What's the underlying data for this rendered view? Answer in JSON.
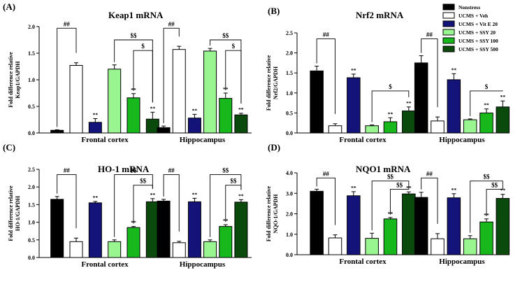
{
  "legend": {
    "entries": [
      {
        "label": "Nonstress",
        "color": "#000000"
      },
      {
        "label": "UCMS + Veh",
        "color": "#ffffff"
      },
      {
        "label": "UCMS + Vit E 20",
        "color": "#14137a"
      },
      {
        "label": "UCMS + SSY 20",
        "color": "#99f58f"
      },
      {
        "label": "UCMS + SSY 100",
        "color": "#16b81c"
      },
      {
        "label": "UCMS + SSY 500",
        "color": "#0b4a0d"
      }
    ]
  },
  "chart_data": [
    {
      "panel": "(A)",
      "type": "bar",
      "title": "Keap1 mRNA",
      "ylabel": [
        "Fold difference relative",
        "Keap1/GAPDH"
      ],
      "ylim": [
        0,
        2.0
      ],
      "yticks": [
        "0.0",
        "0.5",
        "1.0",
        "1.5",
        "2.0"
      ],
      "categories": [
        "Frontal cortex",
        "Hippocampus"
      ],
      "series": [
        {
          "name": "Nonstress",
          "values": [
            0.05,
            0.1
          ],
          "err": [
            0.01,
            0.03
          ]
        },
        {
          "name": "UCMS + Veh",
          "values": [
            1.27,
            1.57
          ],
          "err": [
            0.05,
            0.06
          ]
        },
        {
          "name": "UCMS + Vit E 20",
          "values": [
            0.2,
            0.28
          ],
          "err": [
            0.07,
            0.07
          ]
        },
        {
          "name": "UCMS + SSY 20",
          "values": [
            1.2,
            1.54
          ],
          "err": [
            0.08,
            0.05
          ]
        },
        {
          "name": "UCMS + SSY 100",
          "values": [
            0.66,
            0.65
          ],
          "err": [
            0.08,
            0.1
          ]
        },
        {
          "name": "UCMS + SSY 500",
          "values": [
            0.26,
            0.34
          ],
          "err": [
            0.13,
            0.03
          ]
        }
      ],
      "bar_marks": [
        [
          "",
          "",
          "**",
          "",
          "**",
          "**"
        ],
        [
          "",
          "",
          "**",
          "",
          "**",
          "**"
        ]
      ],
      "brackets": [
        {
          "group": 0,
          "from": 0,
          "to": 1,
          "level": 1.97,
          "label": "##"
        },
        {
          "group": 0,
          "from": 3,
          "to": 5,
          "level": 1.75,
          "label": "$$"
        },
        {
          "group": 0,
          "from": 4,
          "to": 5,
          "level": 1.55,
          "label": "$"
        },
        {
          "group": 1,
          "from": 0,
          "to": 1,
          "level": 1.97,
          "label": "##"
        },
        {
          "group": 1,
          "from": 3,
          "to": 5,
          "level": 1.75,
          "label": "$$"
        },
        {
          "group": 1,
          "from": 4,
          "to": 5,
          "level": 1.55,
          "label": "$"
        }
      ]
    },
    {
      "panel": "(B)",
      "type": "bar",
      "title": "Nrf2 mRNA",
      "ylabel": [
        "Fold difference relative",
        "Nrf2/GAPDH"
      ],
      "ylim": [
        0,
        2.5
      ],
      "yticks": [
        "0.0",
        "0.5",
        "1.0",
        "1.5",
        "2.0",
        "2.5"
      ],
      "categories": [
        "Frontal cortex",
        "Hippocampus"
      ],
      "series": [
        {
          "name": "Nonstress",
          "values": [
            1.55,
            1.75
          ],
          "err": [
            0.12,
            0.18
          ]
        },
        {
          "name": "UCMS + Veh",
          "values": [
            0.18,
            0.3
          ],
          "err": [
            0.05,
            0.1
          ]
        },
        {
          "name": "UCMS + Vit E 20",
          "values": [
            1.38,
            1.33
          ],
          "err": [
            0.09,
            0.15
          ]
        },
        {
          "name": "UCMS + SSY 20",
          "values": [
            0.18,
            0.33
          ],
          "err": [
            0.02,
            0.02
          ]
        },
        {
          "name": "UCMS + SSY 100",
          "values": [
            0.28,
            0.5
          ],
          "err": [
            0.1,
            0.1
          ]
        },
        {
          "name": "UCMS + SSY 500",
          "values": [
            0.55,
            0.65
          ],
          "err": [
            0.1,
            0.15
          ]
        }
      ],
      "bar_marks": [
        [
          "",
          "",
          "**",
          "",
          "**",
          "**"
        ],
        [
          "",
          "",
          "**",
          "",
          "**",
          "**"
        ]
      ],
      "brackets": [
        {
          "group": 0,
          "from": 0,
          "to": 1,
          "level": 2.35,
          "label": "##"
        },
        {
          "group": 0,
          "from": 3,
          "to": 5,
          "level": 1.05,
          "label": "$"
        },
        {
          "group": 1,
          "from": 0,
          "to": 1,
          "level": 2.35,
          "label": "##"
        },
        {
          "group": 1,
          "from": 3,
          "to": 5,
          "level": 1.05,
          "label": "$"
        }
      ]
    },
    {
      "panel": "(C)",
      "type": "bar",
      "title": "HO-1 mRNA",
      "ylabel": [
        "Fold difference relative",
        "HO-1/GAPDH"
      ],
      "ylim": [
        0,
        2.5
      ],
      "yticks": [
        "0.0",
        "0.5",
        "1.0",
        "1.5",
        "2.0",
        "2.5"
      ],
      "categories": [
        "Frontal cortex",
        "Hippocampus"
      ],
      "series": [
        {
          "name": "Nonstress",
          "values": [
            1.65,
            1.6
          ],
          "err": [
            0.08,
            0.05
          ]
        },
        {
          "name": "UCMS + Veh",
          "values": [
            0.45,
            0.42
          ],
          "err": [
            0.1,
            0.04
          ]
        },
        {
          "name": "UCMS + Vit E 20",
          "values": [
            1.55,
            1.58
          ],
          "err": [
            0.04,
            0.1
          ]
        },
        {
          "name": "UCMS + SSY 20",
          "values": [
            0.45,
            0.45
          ],
          "err": [
            0.05,
            0.05
          ]
        },
        {
          "name": "UCMS + SSY 100",
          "values": [
            0.85,
            0.88
          ],
          "err": [
            0.03,
            0.05
          ]
        },
        {
          "name": "UCMS + SSY 500",
          "values": [
            1.58,
            1.57
          ],
          "err": [
            0.09,
            0.07
          ]
        }
      ],
      "bar_marks": [
        [
          "",
          "",
          "**",
          "",
          "**",
          "**"
        ],
        [
          "",
          "",
          "**",
          "",
          "**",
          "**"
        ]
      ],
      "brackets": [
        {
          "group": 0,
          "from": 0,
          "to": 1,
          "level": 2.35,
          "label": "##"
        },
        {
          "group": 0,
          "from": 3,
          "to": 5,
          "level": 2.35,
          "label": "$$"
        },
        {
          "group": 0,
          "from": 4,
          "to": 5,
          "level": 2.05,
          "label": "$$"
        },
        {
          "group": 1,
          "from": 0,
          "to": 1,
          "level": 2.35,
          "label": "##"
        },
        {
          "group": 1,
          "from": 3,
          "to": 5,
          "level": 2.35,
          "label": "$$"
        },
        {
          "group": 1,
          "from": 4,
          "to": 5,
          "level": 2.05,
          "label": "$$"
        }
      ]
    },
    {
      "panel": "(D)",
      "type": "bar",
      "title": "NQO1 mRNA",
      "ylabel": [
        "Fold difference relative",
        "NQO-1/GAPDH"
      ],
      "ylim": [
        0,
        4.0
      ],
      "yticks": [
        "0.0",
        "1.0",
        "2.0",
        "3.0",
        "4.0"
      ],
      "categories": [
        "Frontal cortex",
        "Hippocampus"
      ],
      "series": [
        {
          "name": "Nonstress",
          "values": [
            3.1,
            2.8
          ],
          "err": [
            0.1,
            0.25
          ]
        },
        {
          "name": "UCMS + Veh",
          "values": [
            0.82,
            0.78
          ],
          "err": [
            0.15,
            0.25
          ]
        },
        {
          "name": "UCMS + Vit E 20",
          "values": [
            2.88,
            2.78
          ],
          "err": [
            0.2,
            0.2
          ]
        },
        {
          "name": "UCMS + SSY 20",
          "values": [
            0.8,
            0.78
          ],
          "err": [
            0.25,
            0.15
          ]
        },
        {
          "name": "UCMS + SSY 100",
          "values": [
            1.75,
            1.6
          ],
          "err": [
            0.07,
            0.15
          ]
        },
        {
          "name": "UCMS + SSY 500",
          "values": [
            2.97,
            2.75
          ],
          "err": [
            0.1,
            0.2
          ]
        }
      ],
      "bar_marks": [
        [
          "",
          "",
          "**",
          "",
          "**",
          "**"
        ],
        [
          "",
          "",
          "**",
          "",
          "**",
          "**"
        ]
      ],
      "brackets": [
        {
          "group": 0,
          "from": 0,
          "to": 1,
          "level": 3.75,
          "label": "##"
        },
        {
          "group": 0,
          "from": 3,
          "to": 5,
          "level": 3.6,
          "label": "$$"
        },
        {
          "group": 0,
          "from": 4,
          "to": 5,
          "level": 3.2,
          "label": "$$"
        },
        {
          "group": 1,
          "from": 0,
          "to": 1,
          "level": 3.75,
          "label": "##"
        },
        {
          "group": 1,
          "from": 3,
          "to": 5,
          "level": 3.6,
          "label": "$$"
        },
        {
          "group": 1,
          "from": 4,
          "to": 5,
          "level": 3.2,
          "label": "$$"
        }
      ]
    }
  ]
}
